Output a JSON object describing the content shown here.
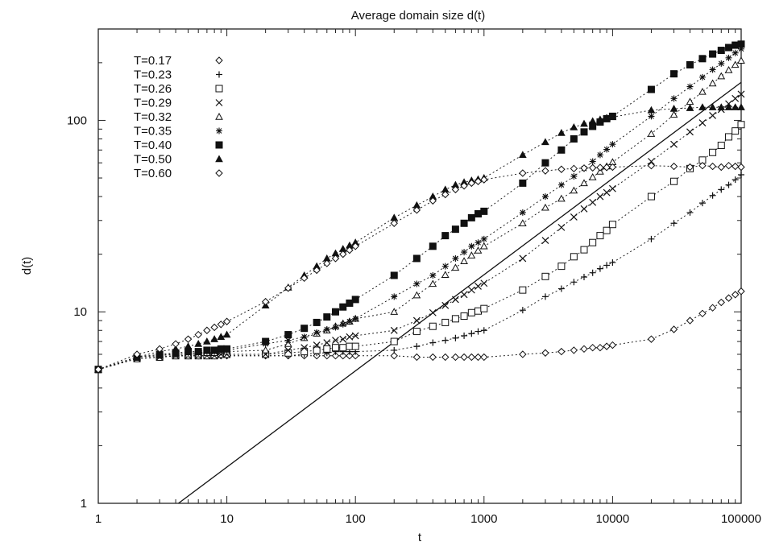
{
  "chart_data": {
    "type": "scatter",
    "title": "Average domain size d(t)",
    "xlabel": "t",
    "ylabel": "d(t)",
    "xscale": "log",
    "yscale": "log",
    "xlim": [
      1,
      100000
    ],
    "ylim": [
      1,
      300
    ],
    "x_ticks": [
      1,
      10,
      100,
      1000,
      10000,
      100000
    ],
    "x_tick_labels": [
      "1",
      "10",
      "100",
      "1000",
      "10000",
      "100000"
    ],
    "y_ticks": [
      1,
      10,
      100
    ],
    "y_tick_labels": [
      "1",
      "10",
      "100"
    ],
    "grid": false,
    "legend_position": "top-left",
    "x": [
      1,
      2,
      3,
      4,
      5,
      6,
      7,
      8,
      9,
      10,
      20,
      30,
      40,
      50,
      60,
      70,
      80,
      90,
      100,
      200,
      300,
      400,
      500,
      600,
      700,
      800,
      900,
      1000,
      2000,
      3000,
      4000,
      5000,
      6000,
      7000,
      8000,
      9000,
      10000,
      20000,
      30000,
      40000,
      50000,
      60000,
      70000,
      80000,
      90000,
      100000
    ],
    "series": [
      {
        "name": "T=0.17",
        "marker": "diamond",
        "filled": false,
        "values": [
          5.0,
          5.7,
          5.8,
          5.9,
          5.9,
          5.9,
          5.9,
          5.9,
          5.9,
          5.9,
          5.9,
          5.9,
          5.9,
          5.9,
          5.9,
          5.9,
          5.9,
          5.9,
          5.9,
          5.9,
          5.8,
          5.8,
          5.8,
          5.8,
          5.8,
          5.8,
          5.8,
          5.8,
          6.0,
          6.1,
          6.2,
          6.3,
          6.4,
          6.5,
          6.5,
          6.6,
          6.7,
          7.2,
          8.1,
          9.0,
          9.8,
          10.5,
          11.2,
          11.8,
          12.3,
          12.8
        ]
      },
      {
        "name": "T=0.23",
        "marker": "plus",
        "filled": false,
        "values": [
          5.0,
          5.7,
          5.8,
          5.9,
          5.9,
          5.9,
          5.9,
          5.9,
          5.9,
          5.9,
          5.9,
          5.9,
          6.0,
          6.1,
          6.1,
          6.2,
          6.2,
          6.2,
          6.2,
          6.3,
          6.6,
          6.9,
          7.1,
          7.3,
          7.5,
          7.7,
          7.9,
          8.0,
          10.2,
          12.0,
          13.2,
          14.3,
          15.2,
          16.0,
          16.8,
          17.5,
          18.1,
          24.0,
          29.0,
          33.0,
          37.0,
          40.5,
          43.5,
          46.0,
          49.0,
          52.0
        ]
      },
      {
        "name": "T=0.26",
        "marker": "square",
        "filled": false,
        "values": [
          5.0,
          5.7,
          5.8,
          5.9,
          5.9,
          5.9,
          5.9,
          5.9,
          6.0,
          6.0,
          6.0,
          6.1,
          6.2,
          6.3,
          6.4,
          6.5,
          6.5,
          6.6,
          6.6,
          7.0,
          7.9,
          8.4,
          8.8,
          9.2,
          9.5,
          9.9,
          10.1,
          10.4,
          13.0,
          15.3,
          17.3,
          19.4,
          21.1,
          23.0,
          25.0,
          26.6,
          28.6,
          40.0,
          48.0,
          56.0,
          62.0,
          68.0,
          74.0,
          82.0,
          88.0,
          95.0
        ]
      },
      {
        "name": "T=0.29",
        "marker": "cross",
        "filled": false,
        "values": [
          5.0,
          5.7,
          5.8,
          5.9,
          5.9,
          5.9,
          5.9,
          5.9,
          6.0,
          6.0,
          6.0,
          6.3,
          6.5,
          6.7,
          6.9,
          7.1,
          7.2,
          7.4,
          7.5,
          8.0,
          9.0,
          9.9,
          10.8,
          11.6,
          12.3,
          13.0,
          13.6,
          14.1,
          19.0,
          23.6,
          27.6,
          31.3,
          34.5,
          37.3,
          40.0,
          42.0,
          44.0,
          61.0,
          75.0,
          87.0,
          97.0,
          106.0,
          114.0,
          122.0,
          130.0,
          137.0
        ]
      },
      {
        "name": "T=0.32",
        "marker": "triangle",
        "filled": false,
        "values": [
          5.0,
          5.8,
          5.9,
          6.0,
          6.0,
          6.0,
          6.1,
          6.1,
          6.2,
          6.2,
          6.3,
          6.8,
          7.3,
          7.7,
          8.0,
          8.4,
          8.7,
          8.9,
          9.2,
          10.0,
          12.2,
          14.0,
          15.6,
          17.0,
          18.4,
          19.7,
          20.9,
          22.0,
          29.0,
          35.0,
          39.0,
          43.0,
          47.0,
          50.5,
          54.0,
          57.5,
          60.5,
          85.0,
          107.0,
          125.0,
          141.0,
          156.0,
          170.0,
          183.0,
          195.0,
          205.0
        ]
      },
      {
        "name": "T=0.35",
        "marker": "star",
        "filled": false,
        "values": [
          5.0,
          5.8,
          6.0,
          6.0,
          6.1,
          6.1,
          6.2,
          6.2,
          6.2,
          6.3,
          6.8,
          7.1,
          7.4,
          7.8,
          8.1,
          8.3,
          8.6,
          8.9,
          9.2,
          12.0,
          14.0,
          15.5,
          17.3,
          19.0,
          20.5,
          22.0,
          23.0,
          24.0,
          33.0,
          40.0,
          46.0,
          51.0,
          56.0,
          61.0,
          66.0,
          70.5,
          75.0,
          105.0,
          130.0,
          150.0,
          168.0,
          184.0,
          198.0,
          212.0,
          225.0,
          236.0
        ]
      },
      {
        "name": "T=0.40",
        "marker": "square",
        "filled": true,
        "values": [
          5.0,
          5.8,
          6.0,
          6.1,
          6.2,
          6.2,
          6.3,
          6.3,
          6.4,
          6.4,
          7.0,
          7.6,
          8.2,
          8.8,
          9.4,
          10.0,
          10.6,
          11.1,
          11.6,
          15.5,
          19.0,
          22.0,
          25.0,
          27.0,
          29.0,
          31.0,
          32.5,
          33.5,
          47.0,
          60.0,
          70.0,
          80.0,
          87.0,
          93.0,
          98.0,
          102.0,
          105.0,
          145.0,
          175.0,
          195.0,
          210.0,
          222.0,
          232.0,
          240.0,
          247.0,
          250.0
        ]
      },
      {
        "name": "T=0.50",
        "marker": "triangle",
        "filled": true,
        "values": [
          5.0,
          5.8,
          6.2,
          6.4,
          6.6,
          6.8,
          7.0,
          7.2,
          7.4,
          7.6,
          10.8,
          13.4,
          15.5,
          17.3,
          19.0,
          20.2,
          21.3,
          22.2,
          23.0,
          31.0,
          36.0,
          40.0,
          43.5,
          46.0,
          47.5,
          48.5,
          49.2,
          50.0,
          66.0,
          77.0,
          86.0,
          92.0,
          96.0,
          99.0,
          101.0,
          103.0,
          104.0,
          113.0,
          115.0,
          116.0,
          117.0,
          117.0,
          117.0,
          117.0,
          117.0,
          117.0
        ]
      },
      {
        "name": "T=0.60",
        "marker": "diamond",
        "filled": false,
        "values": [
          5.0,
          6.0,
          6.4,
          6.8,
          7.2,
          7.6,
          8.0,
          8.3,
          8.6,
          8.9,
          11.3,
          13.3,
          15.0,
          16.5,
          17.9,
          19.0,
          20.0,
          21.0,
          22.0,
          29.0,
          34.0,
          38.0,
          41.0,
          43.5,
          45.5,
          47.0,
          48.0,
          49.0,
          53.0,
          54.5,
          55.5,
          56.0,
          56.3,
          56.5,
          56.7,
          56.8,
          57.0,
          58.0,
          57.5,
          57.0,
          58.0,
          57.5,
          57.0,
          58.0,
          57.5,
          57.0
        ]
      }
    ],
    "reference_line": {
      "style": "solid",
      "points": [
        [
          4.2,
          1.0
        ],
        [
          100000,
          158.0
        ]
      ]
    }
  }
}
